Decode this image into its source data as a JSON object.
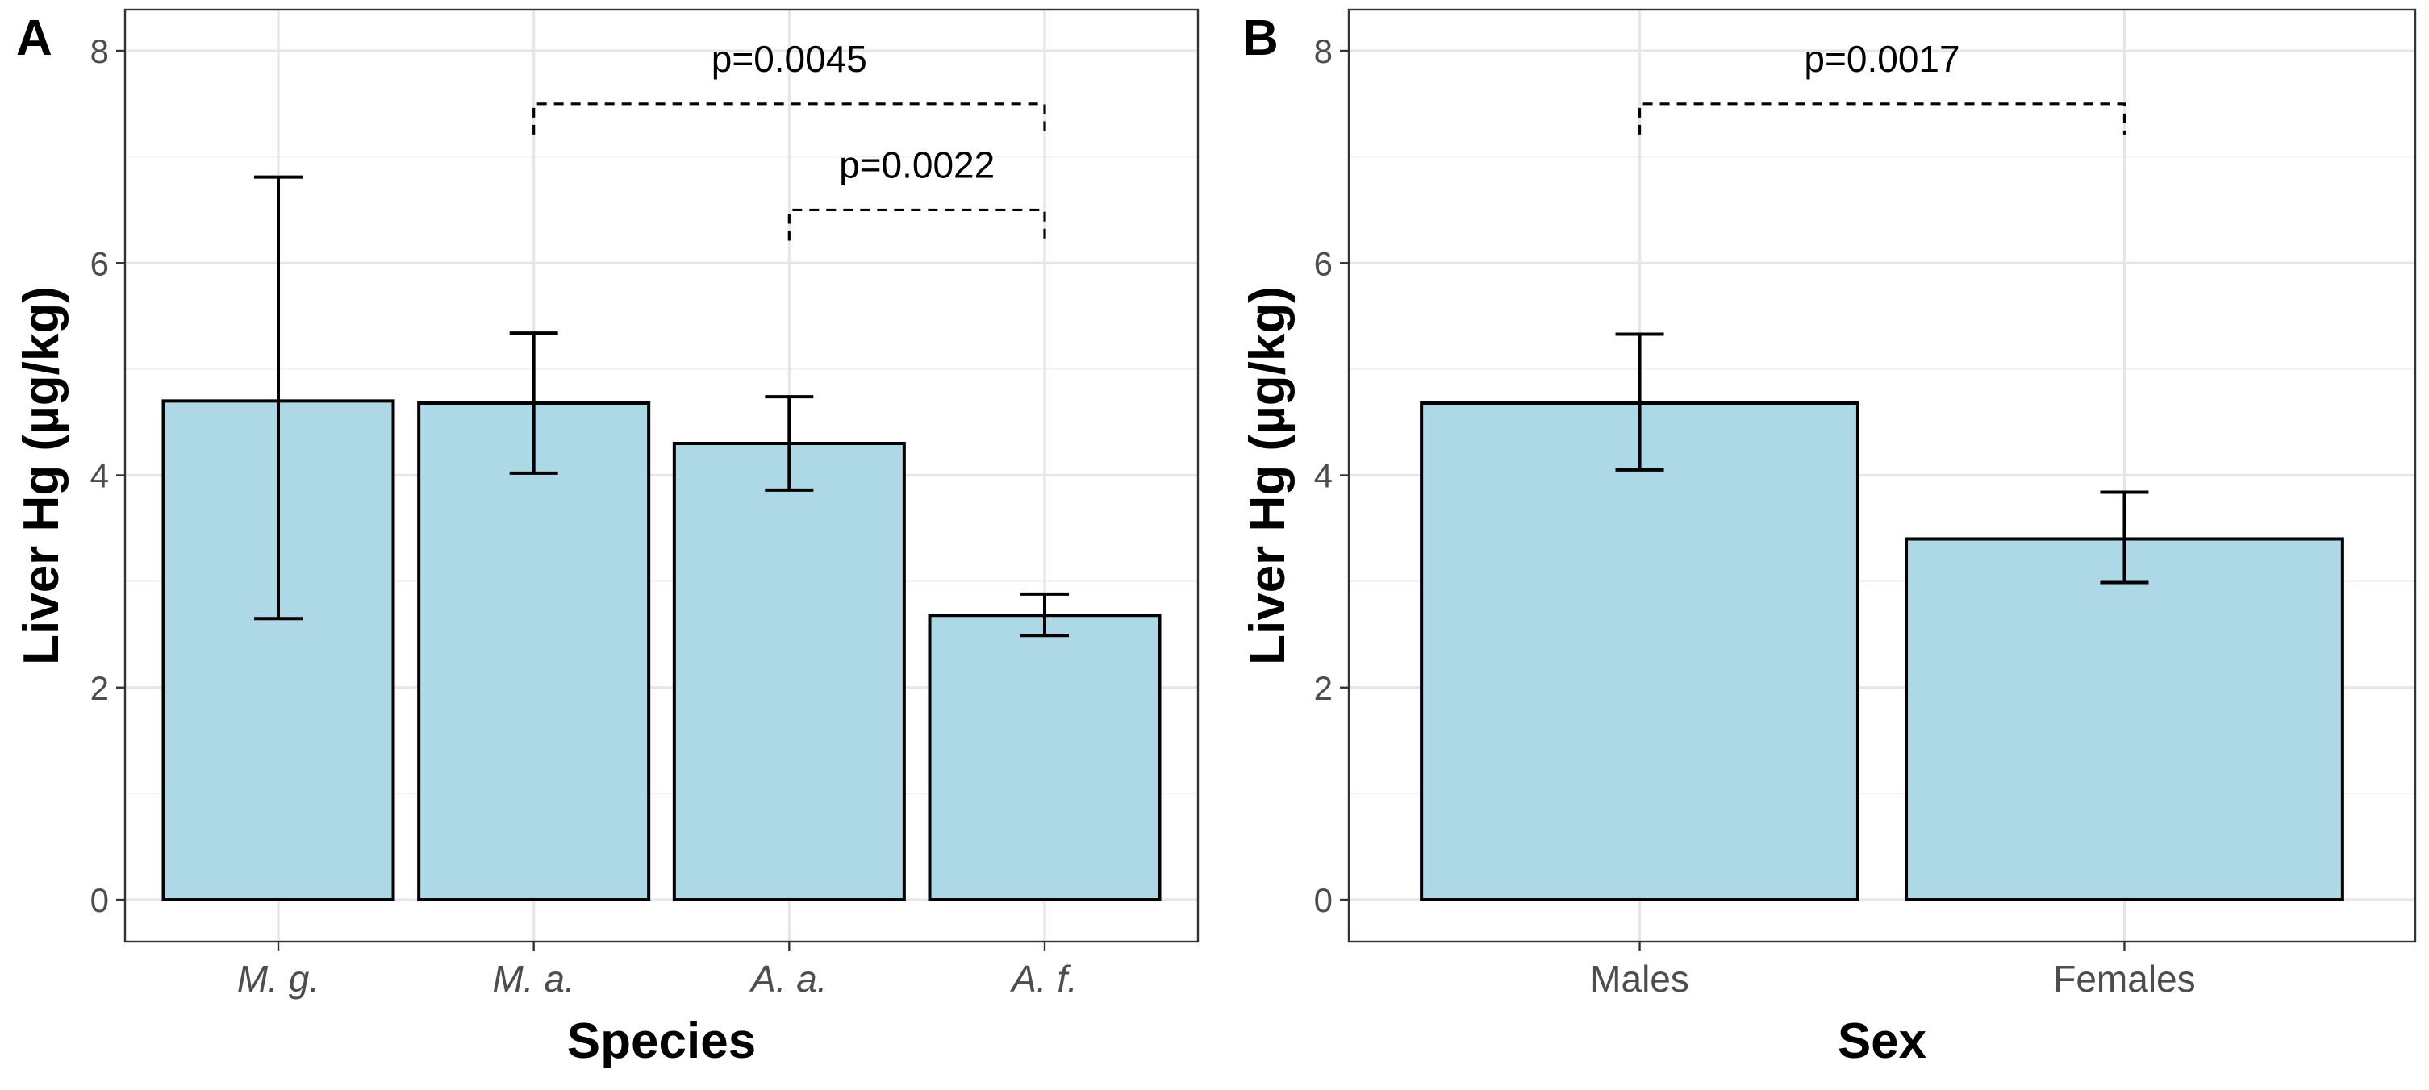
{
  "chart_data": [
    {
      "panel": "A",
      "type": "bar",
      "categories": [
        "M. g.",
        "M. a.",
        "A. a.",
        "A. f."
      ],
      "categories_italic": true,
      "values": [
        4.7,
        4.68,
        4.3,
        2.68
      ],
      "error_low": [
        2.65,
        4.02,
        3.86,
        2.49
      ],
      "error_high": [
        6.81,
        5.34,
        4.74,
        2.88
      ],
      "xlabel": "Species",
      "ylabel": "Liver Hg (µg/kg)",
      "ylim": [
        0,
        8
      ],
      "yticks": [
        "0",
        "2",
        "4",
        "6",
        "8"
      ],
      "grid": true,
      "comparisons": [
        {
          "from": 1,
          "to": 3,
          "y": 7.5,
          "label": "p=0.0045"
        },
        {
          "from": 2,
          "to": 3,
          "y": 6.5,
          "label": "p=0.0022"
        }
      ]
    },
    {
      "panel": "B",
      "type": "bar",
      "categories": [
        "Males",
        "Females"
      ],
      "categories_italic": false,
      "values": [
        4.68,
        3.4
      ],
      "error_low": [
        4.05,
        2.99
      ],
      "error_high": [
        5.33,
        3.84
      ],
      "xlabel": "Sex",
      "ylabel": "Liver Hg (µg/kg)",
      "ylim": [
        0,
        8
      ],
      "yticks": [
        "0",
        "2",
        "4",
        "6",
        "8"
      ],
      "grid": true,
      "comparisons": [
        {
          "from": 0,
          "to": 1,
          "y": 7.5,
          "label": "p=0.0017"
        }
      ]
    }
  ]
}
